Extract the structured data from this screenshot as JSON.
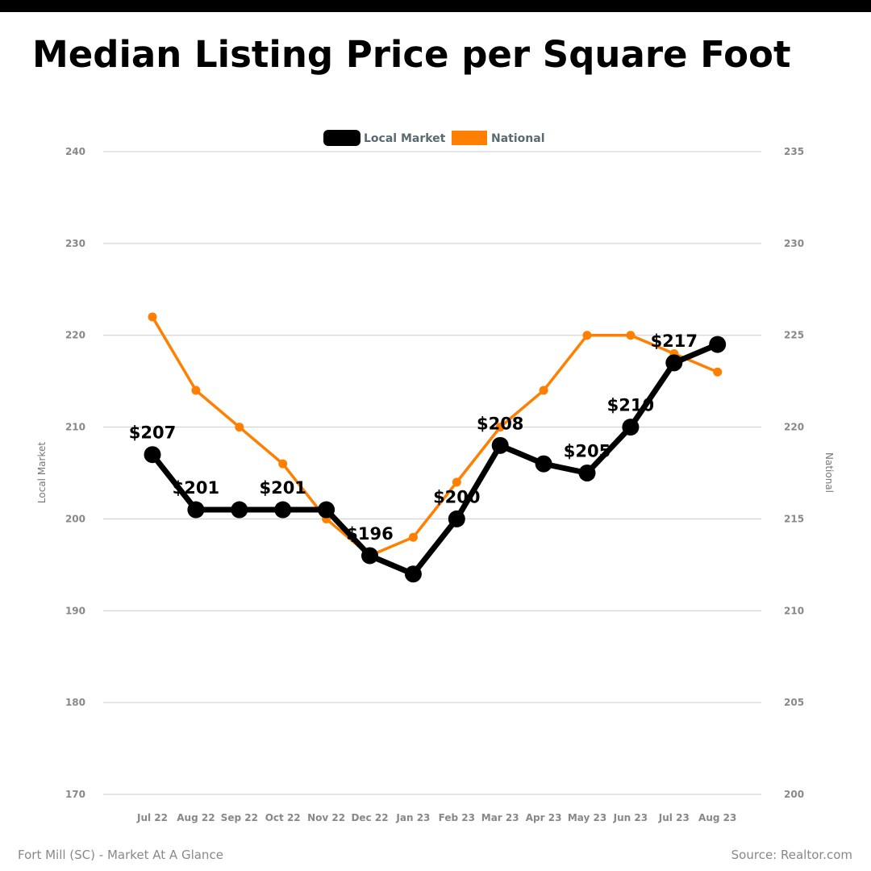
{
  "title": "Median Listing Price per Square Foot",
  "footer": {
    "left": "Fort Mill (SC) - Market At A Glance",
    "right": "Source: Realtor.com"
  },
  "colors": {
    "local": "#000000",
    "national": "#ff8000",
    "grid": "#cccccc"
  },
  "chart_data": {
    "type": "line",
    "title": "Median Listing Price per Square Foot",
    "x": [
      "Jul 22",
      "Aug 22",
      "Sep 22",
      "Oct 22",
      "Nov 22",
      "Dec 22",
      "Jan 23",
      "Feb 23",
      "Mar 23",
      "Apr 23",
      "May 23",
      "Jun 23",
      "Jul 23",
      "Aug 23"
    ],
    "series": [
      {
        "name": "Local Market",
        "axis": "left",
        "color": "#000000",
        "values": [
          207,
          201,
          201,
          201,
          201,
          196,
          194,
          200,
          208,
          206,
          205,
          210,
          217,
          219
        ],
        "data_labels": [
          "$207",
          "$201",
          "",
          "$201",
          "",
          "$196",
          "",
          "$200",
          "$208",
          "",
          "$205",
          "$210",
          "$217",
          ""
        ]
      },
      {
        "name": "National",
        "axis": "right",
        "color": "#ff8000",
        "values": [
          226,
          222,
          220,
          218,
          215,
          213,
          214,
          217,
          220,
          222,
          225,
          225,
          224,
          223
        ]
      }
    ],
    "ylabel_left": "Local Market",
    "ylabel_right": "National",
    "ylim_left": [
      170,
      240
    ],
    "ylim_right": [
      200,
      235
    ],
    "yticks_left": [
      "170",
      "180",
      "190",
      "200",
      "210",
      "220",
      "230",
      "240"
    ],
    "yticks_right": [
      "200",
      "205",
      "210",
      "215",
      "220",
      "225",
      "230",
      "235"
    ],
    "grid": true,
    "legend_position": "top-center"
  }
}
